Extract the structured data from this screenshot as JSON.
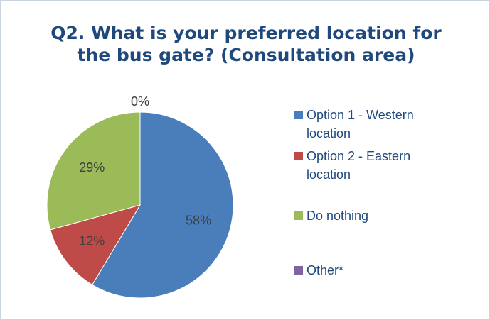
{
  "chart_data": {
    "type": "pie",
    "title": "Q2. What is your preferred location for the bus gate? (Consultation area)",
    "categories": [
      "Option 1 - Western location",
      "Option 2 - Eastern location",
      "Do nothing",
      "Other*"
    ],
    "values": [
      58,
      12,
      29,
      0
    ],
    "value_labels": [
      "58%",
      "12%",
      "29%",
      "0%"
    ],
    "colors": [
      "#4a7ebb",
      "#be4b48",
      "#9bbb59",
      "#8064a2"
    ],
    "legend": "right"
  }
}
